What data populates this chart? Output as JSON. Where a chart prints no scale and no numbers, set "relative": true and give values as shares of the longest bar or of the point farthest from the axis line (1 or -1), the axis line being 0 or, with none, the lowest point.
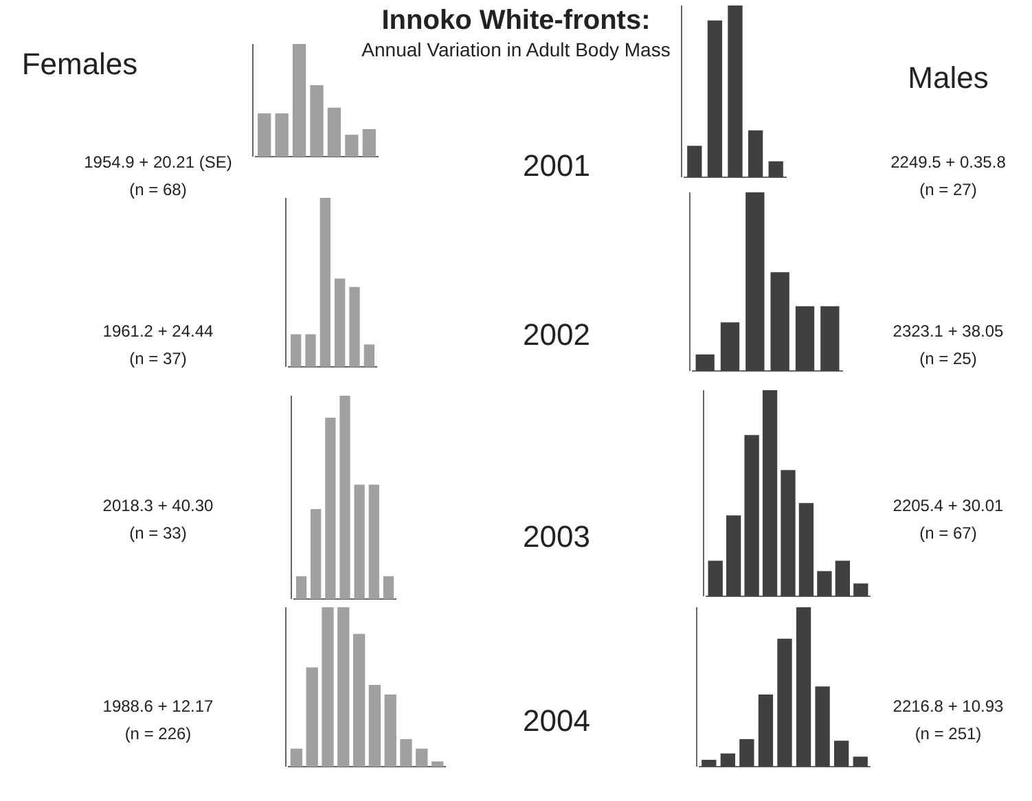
{
  "chart_data": [
    {
      "type": "other",
      "title": "Innoko White-fronts:",
      "subtitle": "Annual Variation in Adult Body Mass",
      "annotations": [
        "Females",
        "Males",
        "2001",
        "2002",
        "2003",
        "2004"
      ]
    },
    {
      "type": "bar",
      "relative": true,
      "categories": [
        null,
        null,
        null,
        null,
        null,
        null,
        null
      ],
      "values": [
        0.38,
        0.38,
        1,
        0.63,
        0.43,
        0.19,
        0.24
      ],
      "color": "#a0a0a0",
      "tick_labels": false,
      "annotations": [
        "1954.9 + 20.21 (SE)",
        "(n = 68)"
      ]
    },
    {
      "type": "bar",
      "relative": true,
      "categories": [
        null,
        null,
        null,
        null,
        null
      ],
      "values": [
        0.18,
        0.91,
        1,
        0.27,
        0.09
      ],
      "color": "#404040",
      "tick_labels": false,
      "annotations": [
        "2249.5  + 0.35.8",
        "(n = 27)"
      ]
    },
    {
      "type": "bar",
      "relative": true,
      "categories": [
        null,
        null,
        null,
        null,
        null,
        null
      ],
      "values": [
        0.19,
        0.19,
        1,
        0.52,
        0.47,
        0.13
      ],
      "color": "#a0a0a0",
      "tick_labels": false,
      "annotations": [
        "1961.2 + 24.44",
        "(n = 37)"
      ]
    },
    {
      "type": "bar",
      "relative": true,
      "categories": [
        null,
        null,
        null,
        null,
        null,
        null
      ],
      "values": [
        0.09,
        0.27,
        1,
        0.55,
        0.36,
        0.36
      ],
      "color": "#404040",
      "tick_labels": false,
      "annotations": [
        "2323.1 + 38.05",
        "(n = 25)"
      ]
    },
    {
      "type": "bar",
      "relative": true,
      "categories": [
        null,
        null,
        null,
        null,
        null,
        null,
        null
      ],
      "values": [
        0.11,
        0.44,
        0.89,
        1,
        0.56,
        0.56,
        0.11
      ],
      "color": "#a0a0a0",
      "tick_labels": false,
      "annotations": [
        "2018.3 + 40.30",
        "(n = 33)"
      ]
    },
    {
      "type": "bar",
      "relative": true,
      "categories": [
        null,
        null,
        null,
        null,
        null,
        null,
        null,
        null,
        null
      ],
      "values": [
        0.17,
        0.39,
        0.78,
        1,
        0.61,
        0.45,
        0.12,
        0.17,
        0.06
      ],
      "color": "#404040",
      "tick_labels": false,
      "annotations": [
        "2205.4 + 30.01",
        "(n = 67)"
      ]
    },
    {
      "type": "bar",
      "relative": true,
      "categories": [
        null,
        null,
        null,
        null,
        null,
        null,
        null,
        null,
        null,
        null
      ],
      "values": [
        0.11,
        0.62,
        1,
        1,
        0.83,
        0.51,
        0.45,
        0.17,
        0.11,
        0.03
      ],
      "color": "#a0a0a0",
      "tick_labels": false,
      "annotations": [
        "1988.6 + 12.17",
        "(n = 226)"
      ]
    },
    {
      "type": "bar",
      "relative": true,
      "categories": [
        null,
        null,
        null,
        null,
        null,
        null,
        null,
        null,
        null
      ],
      "values": [
        0.04,
        0.08,
        0.17,
        0.45,
        0.8,
        1,
        0.5,
        0.16,
        0.06
      ],
      "color": "#404040",
      "tick_labels": false,
      "annotations": [
        "2216.8 + 10.93",
        "(n = 251)"
      ]
    }
  ]
}
